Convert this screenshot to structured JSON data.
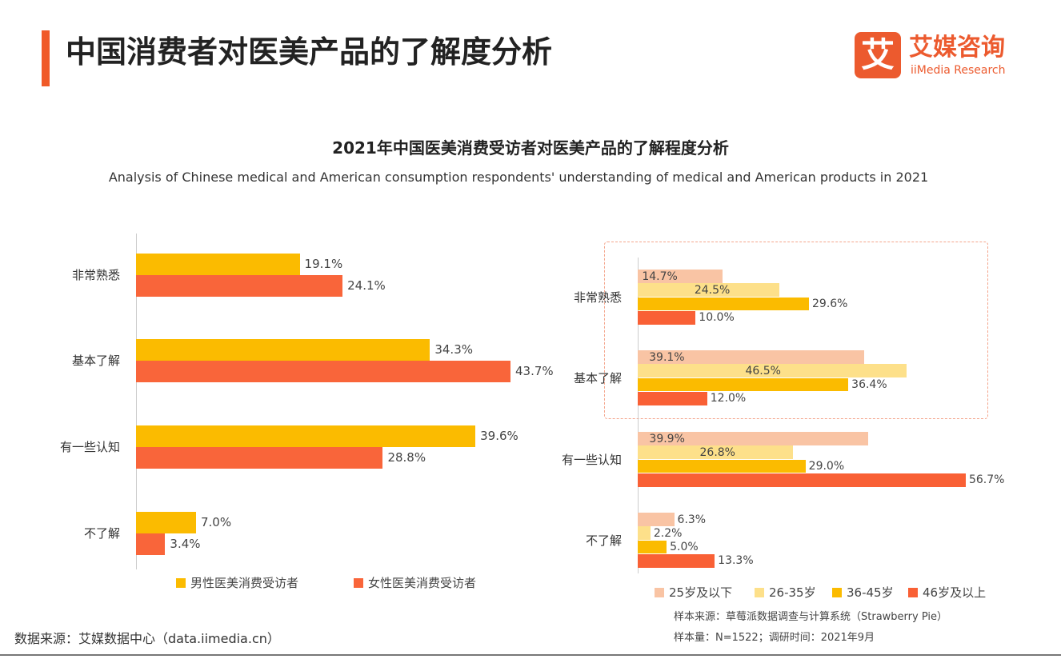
{
  "header": {
    "title": "中国消费者对医美产品的了解度分析",
    "logo_text": "艾",
    "logo_cn": "艾媒咨询",
    "logo_en": "iiMedia Research"
  },
  "chart_title": "2021年中国医美消费受访者对医美产品的了解程度分析",
  "chart_subtitle": "Analysis of Chinese medical and American consumption respondents' understanding of medical and American products in 2021",
  "chart_data": [
    {
      "type": "bar",
      "orientation": "horizontal",
      "categories": [
        "非常熟悉",
        "基本了解",
        "有一些认知",
        "不了解"
      ],
      "series": [
        {
          "name": "男性医美消费受访者",
          "values": [
            19.1,
            34.3,
            39.6,
            7.0
          ],
          "color": "#fbbb00"
        },
        {
          "name": "女性医美消费受访者",
          "values": [
            24.1,
            43.7,
            28.8,
            3.4
          ],
          "color": "#f9653a"
        }
      ],
      "unit": "%",
      "legend": "bottom"
    },
    {
      "type": "bar",
      "orientation": "horizontal",
      "categories": [
        "非常熟悉",
        "基本了解",
        "有一些认知",
        "不了解"
      ],
      "series": [
        {
          "name": "25岁及以下",
          "values": [
            14.7,
            39.1,
            39.9,
            6.3
          ],
          "color": "#f9c4a4"
        },
        {
          "name": "26-35岁",
          "values": [
            24.5,
            46.5,
            26.8,
            2.2
          ],
          "color": "#fde08a"
        },
        {
          "name": "36-45岁",
          "values": [
            29.6,
            36.4,
            29.0,
            5.0
          ],
          "color": "#fbbb00"
        },
        {
          "name": "46岁及以上",
          "values": [
            10.0,
            12.0,
            56.7,
            13.3
          ],
          "color": "#f96035"
        }
      ],
      "unit": "%",
      "legend": "bottom",
      "highlight": "非常熟悉, 基本了解"
    }
  ],
  "footer": {
    "source": "数据来源：艾媒数据中心（data.iimedia.cn）",
    "sample_source": "样本来源：草莓派数据调查与计算系统（Strawberry Pie）",
    "sample_size": "样本量：N=1522；调研时间：2021年9月"
  }
}
